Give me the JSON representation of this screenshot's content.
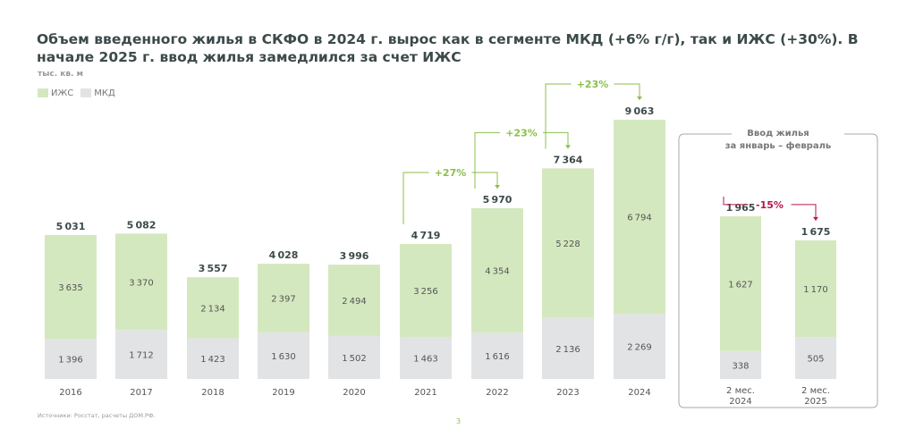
{
  "title": "Объем введенного жилья в СКФО в 2024 г. вырос как в сегменте МКД (+6% г/г), так и ИЖС (+30%). В начале 2025 г. ввод жилья замедлился за счет ИЖС",
  "footnote": "Источники: Росстат, расчеты ДОМ.РФ.",
  "page_number": "3",
  "colors": {
    "izhs": "#d4e8bf",
    "mkd": "#e2e3e4",
    "growth": "#8bbf4a",
    "decline": "#b5174b",
    "text": "#3c4a4a"
  },
  "chart_data": [
    {
      "type": "bar",
      "stacked": true,
      "ylabel": "тыс. кв. м",
      "legend": [
        "ИЖС",
        "МКД"
      ],
      "legend_placement": "top-left",
      "categories": [
        "2016",
        "2017",
        "2018",
        "2019",
        "2020",
        "2021",
        "2022",
        "2023",
        "2024"
      ],
      "series": [
        {
          "name": "МКД",
          "values": [
            1396,
            1712,
            1423,
            1630,
            1502,
            1463,
            1616,
            2136,
            2269
          ]
        },
        {
          "name": "ИЖС",
          "values": [
            3635,
            3370,
            2134,
            2397,
            2494,
            3256,
            4354,
            5228,
            6794
          ]
        }
      ],
      "totals": [
        5031,
        5082,
        3557,
        4028,
        3996,
        4719,
        5970,
        7364,
        9063
      ],
      "annotations": [
        {
          "from": "2021",
          "to": "2022",
          "label": "+27%"
        },
        {
          "from": "2022",
          "to": "2023",
          "label": "+23%"
        },
        {
          "from": "2023",
          "to": "2024",
          "label": "+23%"
        }
      ]
    },
    {
      "type": "bar",
      "stacked": true,
      "title": "Ввод жилья за январь – февраль",
      "categories": [
        "2 мес. 2024",
        "2 мес. 2025"
      ],
      "series": [
        {
          "name": "МКД",
          "values": [
            338,
            505
          ]
        },
        {
          "name": "ИЖС",
          "values": [
            1627,
            1170
          ]
        }
      ],
      "totals": [
        1965,
        1675
      ],
      "annotations": [
        {
          "from": "2 мес. 2024",
          "to": "2 мес. 2025",
          "label": "-15%"
        }
      ]
    }
  ]
}
